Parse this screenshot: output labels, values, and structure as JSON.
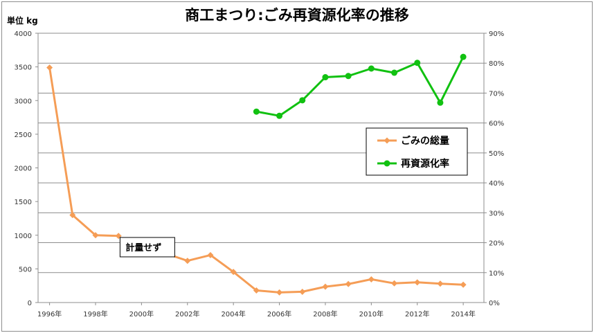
{
  "chart_data": {
    "type": "line",
    "title": "商工まつり:ごみ再資源化率の推移",
    "unit_label": "単位 kg",
    "x": [
      1996,
      1997,
      1998,
      1999,
      2000,
      2001,
      2002,
      2003,
      2004,
      2005,
      2006,
      2007,
      2008,
      2009,
      2010,
      2011,
      2012,
      2013,
      2014
    ],
    "x_tick_labels": [
      "1996年",
      "1998年",
      "2000年",
      "2002年",
      "2004年",
      "2006年",
      "2008年",
      "2010年",
      "2012年",
      "2014年"
    ],
    "y_left_ticks": [
      "0",
      "500",
      "1000",
      "1500",
      "2000",
      "2500",
      "3000",
      "3500",
      "4000"
    ],
    "y_right_ticks": [
      "0%",
      "10%",
      "20%",
      "30%",
      "40%",
      "50%",
      "60%",
      "70%",
      "80%",
      "90%"
    ],
    "ylim_left": [
      0,
      4000
    ],
    "ylim_right": [
      0,
      0.9
    ],
    "grid": "horizontal",
    "legend_position": "right",
    "series": [
      {
        "name": "ごみの総量",
        "axis": "left",
        "color": "#f59d56",
        "marker": "diamond",
        "segments": [
          [
            [
              1996,
              3490
            ],
            [
              1997,
              1300
            ],
            [
              1998,
              1000
            ],
            [
              1999,
              990
            ]
          ],
          [
            [
              2001,
              735
            ],
            [
              2002,
              620
            ],
            [
              2003,
              705
            ],
            [
              2004,
              455
            ],
            [
              2005,
              180
            ],
            [
              2006,
              150
            ],
            [
              2007,
              160
            ],
            [
              2008,
              235
            ],
            [
              2009,
              275
            ],
            [
              2010,
              345
            ],
            [
              2011,
              285
            ],
            [
              2012,
              300
            ],
            [
              2013,
              280
            ],
            [
              2014,
              265
            ]
          ]
        ]
      },
      {
        "name": "再資源化率",
        "axis": "right",
        "color": "#11c111",
        "marker": "circle",
        "segments": [
          [
            [
              2005,
              0.638
            ],
            [
              2006,
              0.624
            ],
            [
              2007,
              0.676
            ],
            [
              2008,
              0.753
            ],
            [
              2009,
              0.757
            ],
            [
              2010,
              0.782
            ],
            [
              2011,
              0.768
            ],
            [
              2012,
              0.801
            ],
            [
              2013,
              0.668
            ],
            [
              2014,
              0.821
            ]
          ]
        ]
      }
    ],
    "annotations": [
      {
        "text": "計量せず",
        "x": 2000
      }
    ]
  }
}
